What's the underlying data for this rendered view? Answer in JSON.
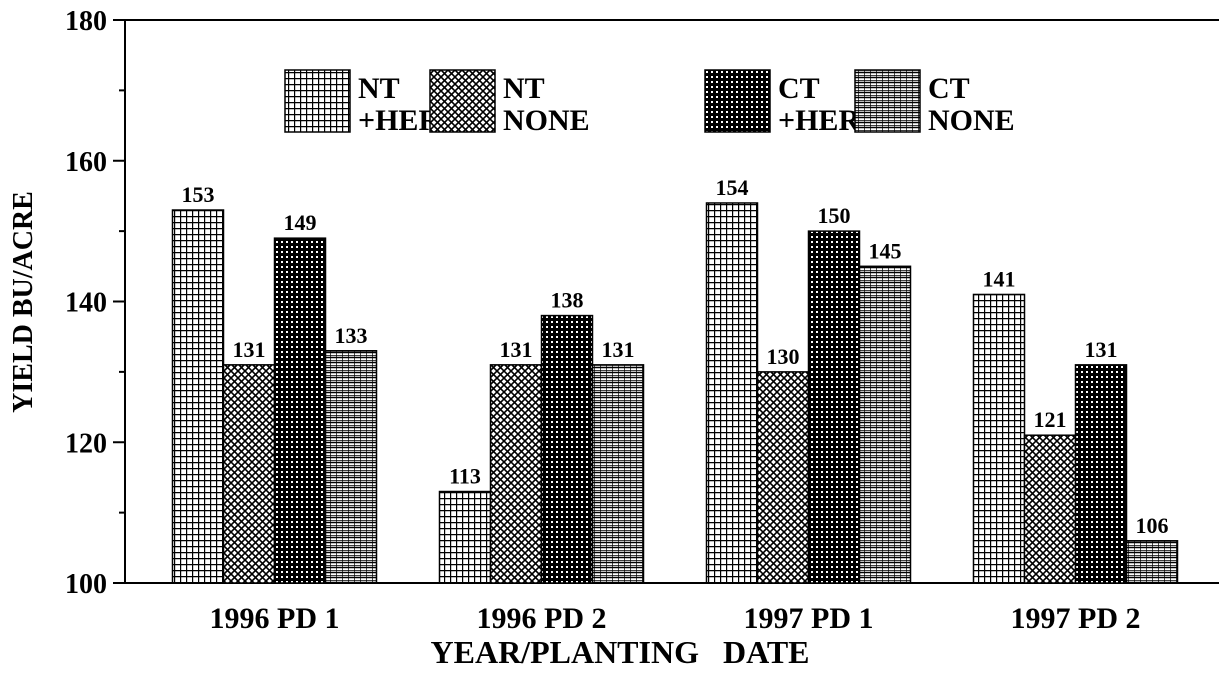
{
  "chart_data": {
    "type": "bar",
    "categories": [
      "1996 PD 1",
      "1996 PD 2",
      "1997 PD 1",
      "1997 PD 2"
    ],
    "series": [
      {
        "name": "NT +HERB",
        "color": "#000000",
        "values": [
          153,
          113,
          154,
          141
        ]
      },
      {
        "name": "NT NONE",
        "color": "#000000",
        "values": [
          131,
          131,
          130,
          121
        ]
      },
      {
        "name": "CT +HERB",
        "color": "#000000",
        "values": [
          149,
          138,
          150,
          131
        ]
      },
      {
        "name": "CT NONE",
        "color": "#000000",
        "values": [
          133,
          131,
          145,
          106
        ]
      }
    ],
    "xlabel": "YEAR/PLANTING   DATE",
    "ylabel": "YIELD BU/ACRE",
    "ylim": [
      100,
      180
    ],
    "yticks": [
      100,
      120,
      140,
      160,
      180
    ],
    "yminor_ticks": [
      110,
      130,
      150,
      170
    ],
    "grid": false
  }
}
